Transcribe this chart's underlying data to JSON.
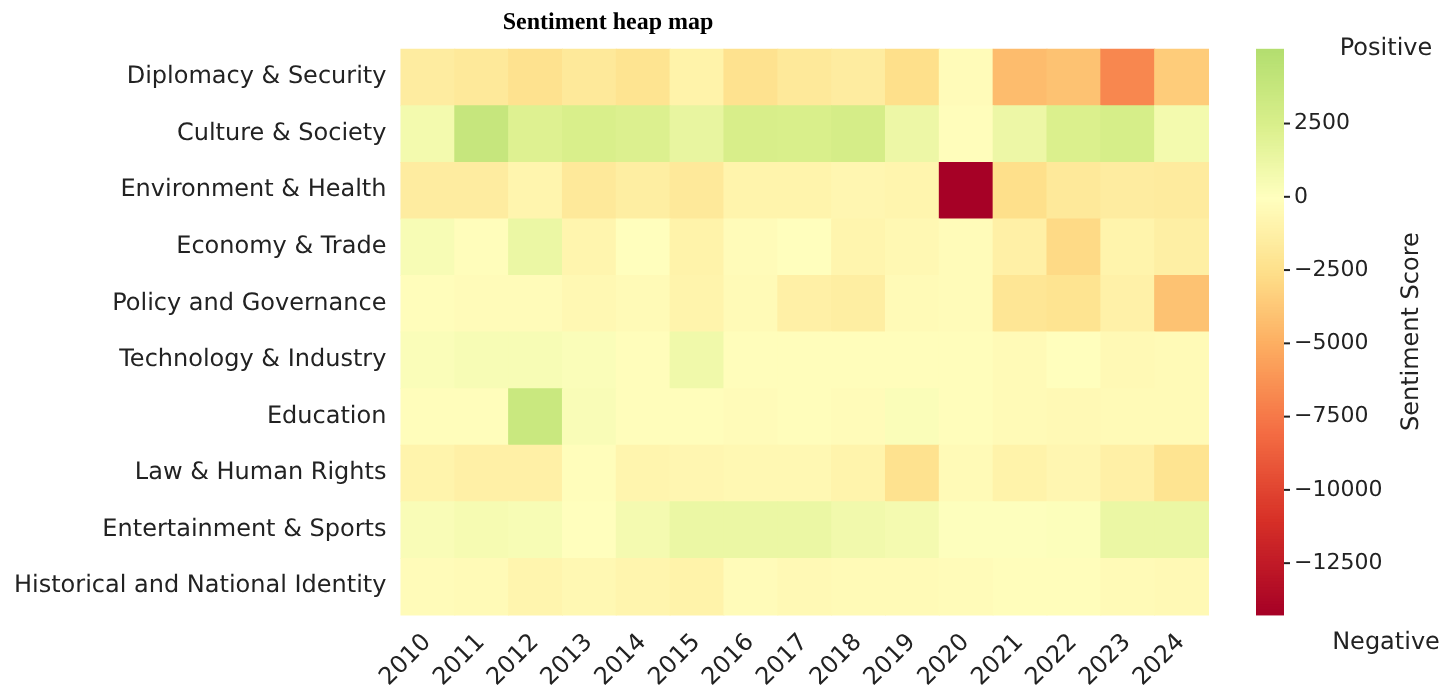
{
  "chart_data": {
    "type": "heatmap",
    "title": "Sentiment heap map",
    "clabel": "Sentiment Score",
    "annotations": [
      "Positive",
      "Negative"
    ],
    "categories": [
      "2010",
      "2011",
      "2012",
      "2013",
      "2014",
      "2015",
      "2016",
      "2017",
      "2018",
      "2019",
      "2020",
      "2021",
      "2022",
      "2023",
      "2024"
    ],
    "y_categories": [
      "Diplomacy & Security",
      "Culture & Society",
      "Environment & Health",
      "Economy & Trade",
      "Policy and Governance",
      "Technology & Industry",
      "Education",
      "Law & Human Rights",
      "Entertainment & Sports",
      "Historical and National Identity"
    ],
    "cells": [
      [
        -1500,
        -1800,
        -2300,
        -1800,
        -2200,
        -1000,
        -2300,
        -1800,
        -1500,
        -2500,
        -300,
        -4300,
        -4000,
        -6800,
        -3500
      ],
      [
        800,
        3800,
        2200,
        2500,
        2300,
        1500,
        2600,
        2500,
        2800,
        1200,
        -200,
        1200,
        2400,
        2700,
        800
      ],
      [
        -1500,
        -1500,
        -800,
        -1800,
        -1400,
        -1800,
        -900,
        -900,
        -700,
        -800,
        -14200,
        -2500,
        -1800,
        -1500,
        -1600
      ],
      [
        500,
        -200,
        1300,
        -800,
        -100,
        -1000,
        -300,
        -100,
        -800,
        -600,
        -300,
        -1200,
        -2800,
        -900,
        -1300
      ],
      [
        -200,
        -300,
        -300,
        -600,
        -400,
        -900,
        -400,
        -1200,
        -1400,
        -400,
        -300,
        -2000,
        -2200,
        -1100,
        -4000
      ],
      [
        300,
        500,
        500,
        300,
        -200,
        1000,
        -200,
        -200,
        -200,
        -200,
        -200,
        -400,
        -100,
        -500,
        -400
      ],
      [
        -200,
        -200,
        3600,
        400,
        -200,
        -200,
        -300,
        -200,
        -300,
        300,
        -200,
        -400,
        -500,
        -400,
        -400
      ],
      [
        -900,
        -1200,
        -1200,
        -200,
        -800,
        -700,
        -600,
        -600,
        -900,
        -2300,
        -400,
        -1000,
        -700,
        -1200,
        -2200
      ],
      [
        400,
        600,
        500,
        -100,
        700,
        1300,
        1300,
        1300,
        900,
        700,
        100,
        100,
        200,
        1300,
        1300
      ],
      [
        -300,
        -400,
        -800,
        -600,
        -800,
        -1000,
        -300,
        -500,
        -400,
        -400,
        -300,
        -200,
        -200,
        -400,
        -500
      ]
    ],
    "clim": [
      -14250,
      5050
    ],
    "cticks": [
      2500,
      0,
      -2500,
      -5000,
      -7500,
      -10000,
      -12500
    ]
  }
}
